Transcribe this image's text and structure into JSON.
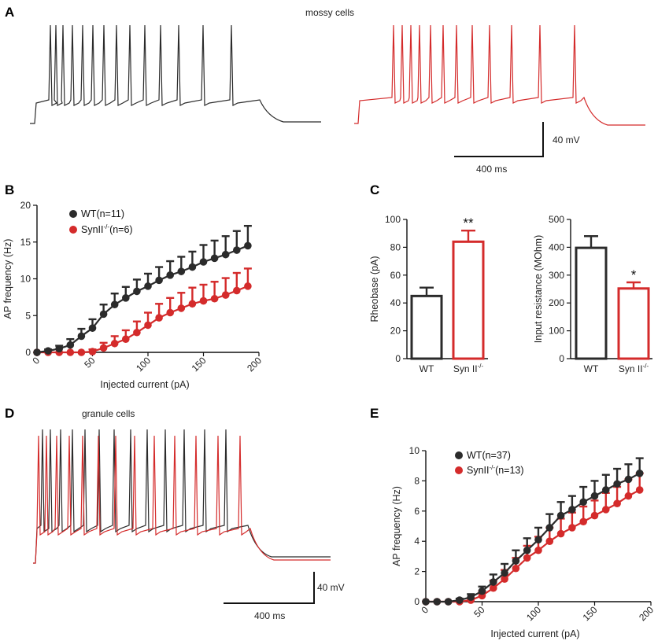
{
  "panel_labels": {
    "A": "A",
    "B": "B",
    "C": "C",
    "D": "D",
    "E": "E"
  },
  "panel_a": {
    "title": "mossy cells",
    "scale_voltage": "40 mV",
    "scale_time": "400 ms"
  },
  "panel_d": {
    "title": "granule cells",
    "scale_voltage": "40 mV",
    "scale_time": "400 ms"
  },
  "colors": {
    "wt": "#2b2b2b",
    "ko": "#d42b2b"
  },
  "chart_data": [
    {
      "id": "B",
      "type": "line",
      "xlabel": "Injected current (pA)",
      "ylabel": "AP frequency (Hz)",
      "xlim": [
        0,
        200
      ],
      "ylim": [
        0,
        20
      ],
      "xticks": [
        "0",
        "50",
        "100",
        "150",
        "200"
      ],
      "yticks": [
        "0",
        "5",
        "10",
        "15",
        "20"
      ],
      "legend_position": "top-left",
      "series": [
        {
          "name": "WT(n=11)",
          "legend_base": "WT",
          "legend_sup": "",
          "legend_tail": "(n=11)",
          "x": [
            0,
            10,
            20,
            30,
            40,
            50,
            60,
            70,
            80,
            90,
            100,
            110,
            120,
            130,
            140,
            150,
            160,
            170,
            180,
            190
          ],
          "y": [
            0,
            0.2,
            0.5,
            1.0,
            2.2,
            3.3,
            5.2,
            6.5,
            7.4,
            8.3,
            9.0,
            9.8,
            10.5,
            11.0,
            11.6,
            12.3,
            12.8,
            13.3,
            13.9,
            14.5
          ],
          "err": [
            0,
            0.2,
            0.4,
            0.8,
            1.0,
            1.2,
            1.3,
            1.5,
            1.5,
            1.6,
            1.7,
            1.8,
            1.9,
            2.0,
            2.1,
            2.3,
            2.4,
            2.5,
            2.6,
            2.7
          ]
        },
        {
          "name": "SynII-/-(n=6)",
          "legend_base": "SynII",
          "legend_sup": "-/-",
          "legend_tail": "(n=6)",
          "x": [
            0,
            10,
            20,
            30,
            40,
            50,
            60,
            70,
            80,
            90,
            100,
            110,
            120,
            130,
            140,
            150,
            160,
            170,
            180,
            190
          ],
          "y": [
            0,
            0,
            0,
            0,
            0,
            0.1,
            0.6,
            1.2,
            1.8,
            2.7,
            3.7,
            4.7,
            5.4,
            6.0,
            6.6,
            7.0,
            7.3,
            7.8,
            8.4,
            9.0
          ],
          "err": [
            0,
            0,
            0,
            0,
            0,
            0.3,
            0.7,
            1.0,
            1.2,
            1.5,
            1.7,
            1.9,
            2.0,
            2.1,
            2.2,
            2.2,
            2.3,
            2.3,
            2.4,
            2.4
          ]
        }
      ]
    },
    {
      "id": "C1",
      "type": "bar",
      "categories": [
        "WT",
        "Syn II-/-"
      ],
      "category_labels": [
        {
          "base": "WT",
          "sup": ""
        },
        {
          "base": "Syn II",
          "sup": "-/-"
        }
      ],
      "values": [
        45,
        84
      ],
      "errors": [
        6,
        8
      ],
      "ylabel": "Rheobase (pA)",
      "ylim": [
        0,
        100
      ],
      "yticks": [
        "0",
        "20",
        "40",
        "60",
        "80",
        "100"
      ],
      "annotation": "**"
    },
    {
      "id": "C2",
      "type": "bar",
      "categories": [
        "WT",
        "Syn II-/-"
      ],
      "category_labels": [
        {
          "base": "WT",
          "sup": ""
        },
        {
          "base": "Syn II",
          "sup": "-/-"
        }
      ],
      "values": [
        398,
        252
      ],
      "errors": [
        42,
        22
      ],
      "ylabel": "Input resistance (MOhm)",
      "ylim": [
        0,
        500
      ],
      "yticks": [
        "0",
        "100",
        "200",
        "300",
        "400",
        "500"
      ],
      "annotation": "*"
    },
    {
      "id": "E",
      "type": "line",
      "xlabel": "Injected current (pA)",
      "ylabel": "AP frequency (Hz)",
      "xlim": [
        0,
        200
      ],
      "ylim": [
        0,
        10
      ],
      "xticks": [
        "0",
        "50",
        "100",
        "150",
        "200"
      ],
      "yticks": [
        "0",
        "2",
        "4",
        "6",
        "8",
        "10"
      ],
      "legend_position": "top-left",
      "series": [
        {
          "name": "WT(n=37)",
          "legend_base": "WT",
          "legend_sup": "",
          "legend_tail": "(n=37)",
          "x": [
            0,
            10,
            20,
            30,
            40,
            50,
            60,
            70,
            80,
            90,
            100,
            110,
            120,
            130,
            140,
            150,
            160,
            170,
            180,
            190
          ],
          "y": [
            0,
            0,
            0,
            0.1,
            0.3,
            0.7,
            1.3,
            1.9,
            2.7,
            3.4,
            4.1,
            4.9,
            5.7,
            6.1,
            6.6,
            7.0,
            7.4,
            7.8,
            8.1,
            8.5
          ],
          "err": [
            0,
            0,
            0,
            0.1,
            0.2,
            0.3,
            0.5,
            0.6,
            0.7,
            0.8,
            0.8,
            0.9,
            0.9,
            0.9,
            1.0,
            1.0,
            1.0,
            1.0,
            1.0,
            1.0
          ]
        },
        {
          "name": "SynII-/-(n=13)",
          "legend_base": "SynII",
          "legend_sup": "-/-",
          "legend_tail": "(n=13)",
          "x": [
            0,
            10,
            20,
            30,
            40,
            50,
            60,
            70,
            80,
            90,
            100,
            110,
            120,
            130,
            140,
            150,
            160,
            170,
            180,
            190
          ],
          "y": [
            0,
            0,
            0,
            0,
            0.1,
            0.4,
            0.9,
            1.5,
            2.2,
            2.9,
            3.4,
            4.0,
            4.5,
            4.9,
            5.3,
            5.7,
            6.1,
            6.5,
            7.0,
            7.4
          ],
          "err": [
            0,
            0,
            0,
            0,
            0.1,
            0.3,
            0.5,
            0.6,
            0.7,
            0.8,
            0.9,
            0.9,
            1.0,
            1.0,
            1.0,
            1.0,
            1.1,
            1.1,
            1.1,
            1.1
          ]
        }
      ]
    }
  ]
}
